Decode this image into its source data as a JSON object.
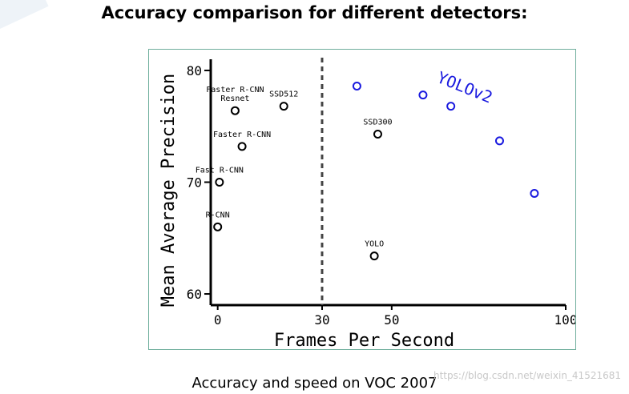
{
  "slide": {
    "title": "Accuracy comparison for different detectors:",
    "caption": "Accuracy and speed on VOC 2007",
    "watermark": "https://blog.csdn.net/weixin_41521681"
  },
  "chart_data": {
    "type": "scatter",
    "title": "",
    "xlabel": "Frames Per Second",
    "ylabel": "Mean Average Precision",
    "x_ticks": [
      0,
      30,
      50,
      100
    ],
    "y_ticks": [
      60,
      70,
      80
    ],
    "xlim": [
      -2,
      100
    ],
    "ylim": [
      59,
      81
    ],
    "realtime_threshold_x": 30,
    "points": [
      {
        "label": "R-CNN",
        "x": 0,
        "y": 66.0
      },
      {
        "label": "Fast R-CNN",
        "x": 0.5,
        "y": 70.0
      },
      {
        "label": "Faster R-CNN",
        "x": 7,
        "y": 73.2
      },
      {
        "label": "Faster R-CNN\nResnet",
        "x": 5,
        "y": 76.4
      },
      {
        "label": "SSD512",
        "x": 19,
        "y": 76.8
      },
      {
        "label": "SSD300",
        "x": 46,
        "y": 74.3
      },
      {
        "label": "YOLO",
        "x": 45,
        "y": 63.4
      }
    ],
    "series": [
      {
        "name": "YOLOv2",
        "color": "#1a1adf",
        "x": [
          40,
          59,
          67,
          81,
          91
        ],
        "y": [
          78.6,
          77.8,
          76.8,
          73.7,
          69.0
        ]
      }
    ],
    "point_color": "#000000"
  }
}
